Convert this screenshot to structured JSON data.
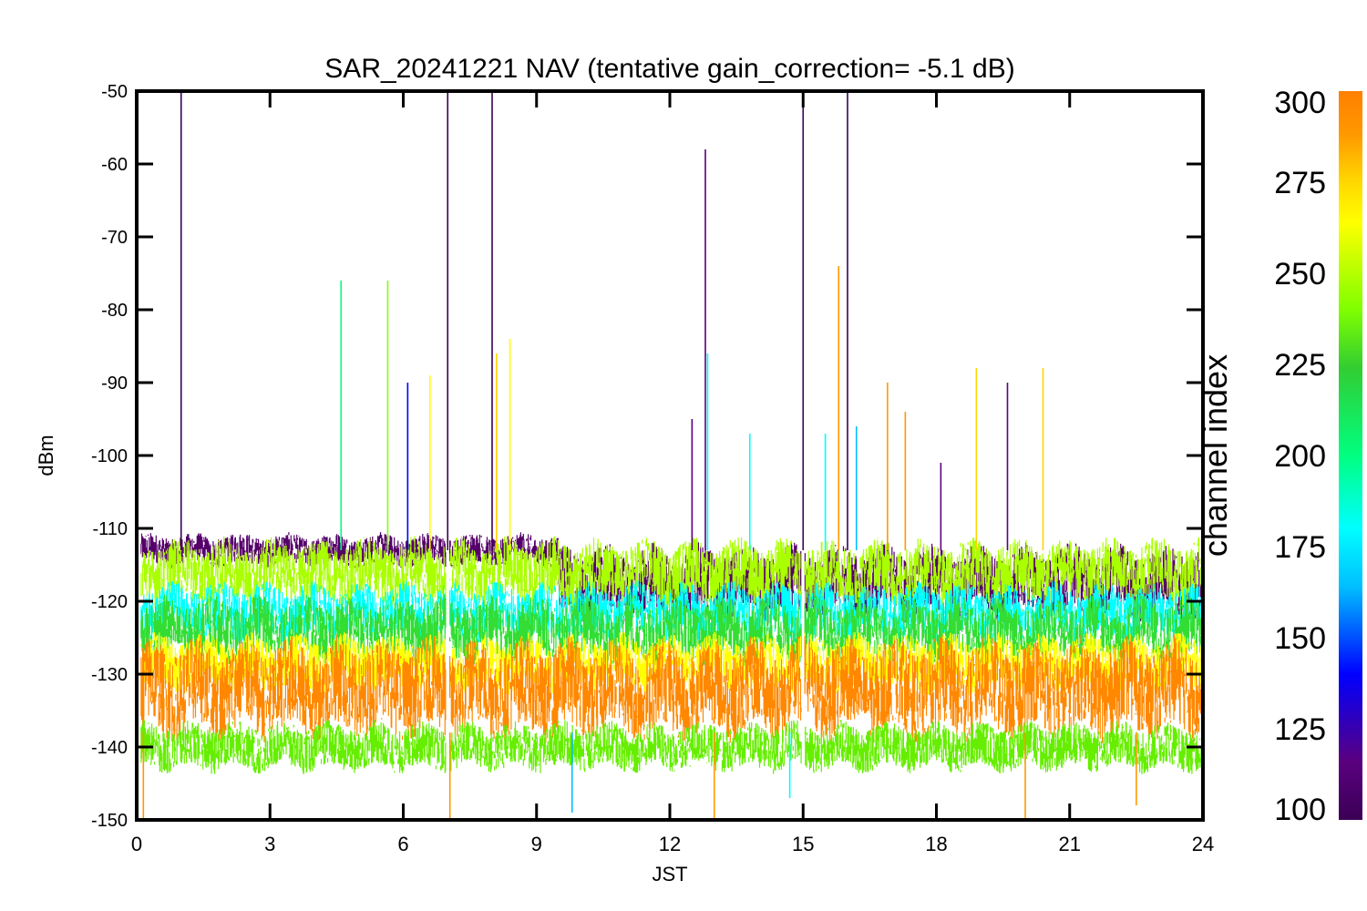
{
  "chart_data": {
    "type": "line",
    "title": "SAR_20241221 NAV (tentative gain_correction= -5.1 dB)",
    "xlabel": "JST",
    "ylabel": "dBm",
    "xlim": [
      0,
      24
    ],
    "ylim": [
      -150,
      -50
    ],
    "x_ticks": [
      0,
      3,
      6,
      9,
      12,
      15,
      18,
      21,
      24
    ],
    "y_ticks": [
      -50,
      -60,
      -70,
      -80,
      -90,
      -100,
      -110,
      -120,
      -130,
      -140,
      -150
    ],
    "grid": false,
    "data_gaps_hours": [
      7.0,
      15.0
    ],
    "colorbar": {
      "label": "channel index",
      "range": [
        100,
        300
      ],
      "ticks": [
        300,
        275,
        250,
        225,
        200,
        175,
        150,
        125,
        100
      ],
      "colormap": [
        "#3b0055",
        "#5a007f",
        "#0000ff",
        "#00bfff",
        "#00ffff",
        "#00ff80",
        "#32cd32",
        "#7fff00",
        "#ffff00",
        "#ffd400",
        "#ff9900",
        "#ff7f00"
      ]
    },
    "series": [
      {
        "channel_index": 105,
        "color": "#55006a",
        "time_range": [
          0.1,
          9.5
        ],
        "level_range": [
          -115,
          -111
        ]
      },
      {
        "channel_index": 105,
        "color": "#55006a",
        "time_range": [
          9.5,
          24
        ],
        "level_range": [
          -122,
          -113
        ]
      },
      {
        "channel_index": 255,
        "color": "#aaff00",
        "time_range": [
          0.1,
          24
        ],
        "level_range": [
          -120,
          -112
        ]
      },
      {
        "channel_index": 180,
        "color": "#00ffff",
        "time_range": [
          0.1,
          24
        ],
        "level_range": [
          -125,
          -118
        ]
      },
      {
        "channel_index": 230,
        "color": "#33dd33",
        "time_range": [
          0.1,
          24
        ],
        "level_range": [
          -128,
          -120
        ]
      },
      {
        "channel_index": 270,
        "color": "#ffff00",
        "time_range": [
          0.1,
          24
        ],
        "level_range": [
          -132,
          -125
        ]
      },
      {
        "channel_index": 290,
        "color": "#ff8800",
        "time_range": [
          0.1,
          24
        ],
        "level_range": [
          -138,
          -126
        ]
      },
      {
        "channel_index": 240,
        "color": "#66ee00",
        "time_range": [
          0.1,
          24
        ],
        "level_range": [
          -143,
          -137
        ]
      }
    ],
    "spikes": [
      {
        "x": 1.0,
        "y": -50,
        "channel_index": 105
      },
      {
        "x": 4.6,
        "y": -76,
        "channel_index": 190
      },
      {
        "x": 5.65,
        "y": -76,
        "channel_index": 225
      },
      {
        "x": 6.1,
        "y": -90,
        "channel_index": 140
      },
      {
        "x": 6.6,
        "y": -89,
        "channel_index": 240
      },
      {
        "x": 7.0,
        "y": -50,
        "channel_index": 105
      },
      {
        "x": 8.0,
        "y": -50,
        "channel_index": 105
      },
      {
        "x": 8.1,
        "y": -86,
        "channel_index": 265
      },
      {
        "x": 8.4,
        "y": -84,
        "channel_index": 250
      },
      {
        "x": 12.5,
        "y": -95,
        "channel_index": 110
      },
      {
        "x": 12.8,
        "y": -58,
        "channel_index": 110
      },
      {
        "x": 12.85,
        "y": -86,
        "channel_index": 180
      },
      {
        "x": 13.8,
        "y": -97,
        "channel_index": 170
      },
      {
        "x": 15.0,
        "y": -50,
        "channel_index": 105
      },
      {
        "x": 15.5,
        "y": -97,
        "channel_index": 180
      },
      {
        "x": 15.8,
        "y": -74,
        "channel_index": 285
      },
      {
        "x": 16.0,
        "y": -50,
        "channel_index": 105
      },
      {
        "x": 16.2,
        "y": -96,
        "channel_index": 150
      },
      {
        "x": 16.9,
        "y": -90,
        "channel_index": 285
      },
      {
        "x": 17.3,
        "y": -94,
        "channel_index": 280
      },
      {
        "x": 18.1,
        "y": -101,
        "channel_index": 120
      },
      {
        "x": 18.9,
        "y": -88,
        "channel_index": 265
      },
      {
        "x": 19.6,
        "y": -90,
        "channel_index": 110
      },
      {
        "x": 20.4,
        "y": -88,
        "channel_index": 265
      }
    ],
    "low_spikes": [
      {
        "x": 0.15,
        "y": -150,
        "channel_index": 285
      },
      {
        "x": 7.05,
        "y": -150,
        "channel_index": 285
      },
      {
        "x": 9.8,
        "y": -149,
        "channel_index": 150
      },
      {
        "x": 13.0,
        "y": -150,
        "channel_index": 285
      },
      {
        "x": 14.7,
        "y": -147,
        "channel_index": 180
      },
      {
        "x": 20.0,
        "y": -150,
        "channel_index": 285
      },
      {
        "x": 22.5,
        "y": -148,
        "channel_index": 285
      }
    ]
  }
}
